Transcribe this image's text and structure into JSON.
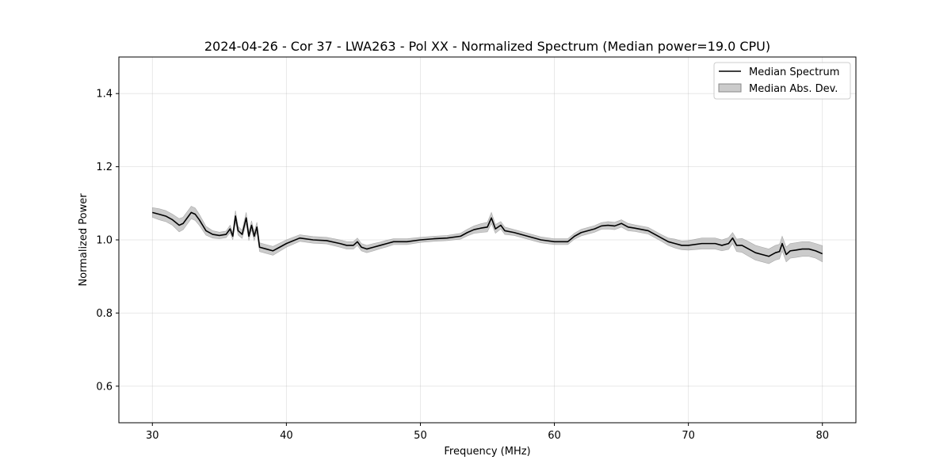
{
  "chart_data": {
    "type": "line",
    "title": "2024-04-26 - Cor 37 - LWA263 - Pol XX - Normalized Spectrum (Median power=19.0 CPU)",
    "xlabel": "Frequency (MHz)",
    "ylabel": "Normalized Power",
    "xlim": [
      27.5,
      82.5
    ],
    "ylim": [
      0.5,
      1.5
    ],
    "xticks": [
      30,
      40,
      50,
      60,
      70,
      80
    ],
    "yticks": [
      0.6,
      0.8,
      1.0,
      1.2,
      1.4
    ],
    "xtick_labels": [
      "30",
      "40",
      "50",
      "60",
      "70",
      "80"
    ],
    "ytick_labels": [
      "0.6",
      "0.8",
      "1.0",
      "1.2",
      "1.4"
    ],
    "grid": true,
    "legend_position": "top-right",
    "legend": [
      "Median Spectrum",
      "Median Abs. Dev."
    ],
    "series": [
      {
        "name": "Median Spectrum",
        "color": "#000000",
        "x": [
          30.0,
          30.5,
          31.0,
          31.5,
          32.0,
          32.3,
          32.6,
          32.9,
          33.2,
          33.5,
          34.0,
          34.5,
          35.0,
          35.5,
          35.8,
          36.0,
          36.2,
          36.4,
          36.7,
          37.0,
          37.2,
          37.4,
          37.6,
          37.8,
          38.0,
          38.5,
          39.0,
          39.5,
          40.0,
          41.0,
          42.0,
          43.0,
          44.0,
          44.5,
          45.0,
          45.3,
          45.6,
          46.0,
          46.5,
          47.0,
          47.5,
          48.0,
          49.0,
          50.0,
          51.0,
          52.0,
          53.0,
          53.5,
          54.0,
          54.5,
          55.0,
          55.3,
          55.6,
          56.0,
          56.3,
          57.0,
          58.0,
          59.0,
          60.0,
          61.0,
          61.5,
          62.0,
          63.0,
          63.5,
          64.0,
          64.5,
          65.0,
          65.5,
          66.0,
          67.0,
          67.5,
          68.0,
          68.5,
          69.0,
          69.5,
          70.0,
          71.0,
          72.0,
          72.5,
          73.0,
          73.3,
          73.6,
          74.0,
          74.5,
          75.0,
          75.5,
          76.0,
          76.5,
          76.8,
          77.0,
          77.3,
          77.6,
          78.0,
          78.5,
          79.0,
          79.5,
          80.0
        ],
        "y": [
          1.075,
          1.07,
          1.065,
          1.055,
          1.04,
          1.045,
          1.06,
          1.075,
          1.07,
          1.055,
          1.025,
          1.015,
          1.012,
          1.015,
          1.03,
          1.01,
          1.065,
          1.025,
          1.015,
          1.06,
          1.01,
          1.04,
          1.01,
          1.035,
          0.98,
          0.975,
          0.97,
          0.98,
          0.99,
          1.005,
          1.0,
          0.998,
          0.99,
          0.985,
          0.985,
          0.995,
          0.98,
          0.975,
          0.98,
          0.985,
          0.99,
          0.995,
          0.995,
          1.0,
          1.003,
          1.005,
          1.01,
          1.02,
          1.028,
          1.032,
          1.035,
          1.06,
          1.03,
          1.04,
          1.025,
          1.02,
          1.01,
          1.0,
          0.995,
          0.995,
          1.01,
          1.02,
          1.03,
          1.038,
          1.04,
          1.038,
          1.045,
          1.035,
          1.032,
          1.025,
          1.015,
          1.005,
          0.995,
          0.99,
          0.985,
          0.985,
          0.99,
          0.99,
          0.985,
          0.99,
          1.005,
          0.985,
          0.985,
          0.975,
          0.965,
          0.96,
          0.955,
          0.965,
          0.968,
          0.99,
          0.96,
          0.97,
          0.972,
          0.975,
          0.975,
          0.97,
          0.962
        ]
      },
      {
        "name": "Median Abs. Dev.",
        "color": "#a9a9a9",
        "x": [
          30.0,
          30.5,
          31.0,
          31.5,
          32.0,
          32.3,
          32.6,
          32.9,
          33.2,
          33.5,
          34.0,
          34.5,
          35.0,
          35.5,
          35.8,
          36.0,
          36.2,
          36.4,
          36.7,
          37.0,
          37.2,
          37.4,
          37.6,
          37.8,
          38.0,
          38.5,
          39.0,
          39.5,
          40.0,
          41.0,
          42.0,
          43.0,
          44.0,
          44.5,
          45.0,
          45.3,
          45.6,
          46.0,
          46.5,
          47.0,
          47.5,
          48.0,
          49.0,
          50.0,
          51.0,
          52.0,
          53.0,
          53.5,
          54.0,
          54.5,
          55.0,
          55.3,
          55.6,
          56.0,
          56.3,
          57.0,
          58.0,
          59.0,
          60.0,
          61.0,
          61.5,
          62.0,
          63.0,
          63.5,
          64.0,
          64.5,
          65.0,
          65.5,
          66.0,
          67.0,
          67.5,
          68.0,
          68.5,
          69.0,
          69.5,
          70.0,
          71.0,
          72.0,
          72.5,
          73.0,
          73.3,
          73.6,
          74.0,
          74.5,
          75.0,
          75.5,
          76.0,
          76.5,
          76.8,
          77.0,
          77.3,
          77.6,
          78.0,
          78.5,
          79.0,
          79.5,
          80.0
        ],
        "lower": [
          1.062,
          1.055,
          1.05,
          1.04,
          1.022,
          1.028,
          1.043,
          1.058,
          1.053,
          1.04,
          1.013,
          1.005,
          1.003,
          1.006,
          1.02,
          1.0,
          1.05,
          1.013,
          1.004,
          1.045,
          0.998,
          1.028,
          0.998,
          1.022,
          0.968,
          0.963,
          0.958,
          0.969,
          0.98,
          0.996,
          0.991,
          0.989,
          0.98,
          0.975,
          0.975,
          0.985,
          0.97,
          0.965,
          0.97,
          0.976,
          0.981,
          0.987,
          0.987,
          0.993,
          0.996,
          0.998,
          1.002,
          1.011,
          1.018,
          1.02,
          1.022,
          1.045,
          1.018,
          1.03,
          1.015,
          1.012,
          1.002,
          0.992,
          0.987,
          0.987,
          1.002,
          1.011,
          1.021,
          1.029,
          1.03,
          1.028,
          1.035,
          1.025,
          1.023,
          1.016,
          1.006,
          0.996,
          0.985,
          0.978,
          0.973,
          0.972,
          0.975,
          0.975,
          0.97,
          0.974,
          0.99,
          0.968,
          0.966,
          0.955,
          0.945,
          0.94,
          0.935,
          0.945,
          0.948,
          0.97,
          0.94,
          0.95,
          0.952,
          0.955,
          0.955,
          0.95,
          0.94
        ],
        "upper": [
          1.088,
          1.085,
          1.08,
          1.07,
          1.058,
          1.062,
          1.077,
          1.092,
          1.087,
          1.07,
          1.037,
          1.025,
          1.021,
          1.024,
          1.04,
          1.02,
          1.08,
          1.037,
          1.026,
          1.075,
          1.022,
          1.052,
          1.022,
          1.048,
          0.992,
          0.987,
          0.982,
          0.991,
          1.0,
          1.014,
          1.009,
          1.007,
          1.0,
          0.995,
          0.995,
          1.005,
          0.99,
          0.985,
          0.99,
          0.994,
          0.999,
          1.003,
          1.003,
          1.007,
          1.01,
          1.012,
          1.018,
          1.029,
          1.038,
          1.044,
          1.048,
          1.075,
          1.042,
          1.05,
          1.035,
          1.028,
          1.018,
          1.008,
          1.003,
          1.003,
          1.018,
          1.029,
          1.039,
          1.047,
          1.05,
          1.048,
          1.055,
          1.045,
          1.041,
          1.034,
          1.024,
          1.014,
          1.005,
          1.002,
          0.997,
          0.998,
          1.005,
          1.005,
          1.0,
          1.006,
          1.02,
          1.002,
          1.004,
          0.995,
          0.985,
          0.98,
          0.975,
          0.985,
          0.988,
          1.01,
          0.98,
          0.99,
          0.992,
          0.995,
          0.995,
          0.99,
          0.984
        ]
      }
    ]
  }
}
